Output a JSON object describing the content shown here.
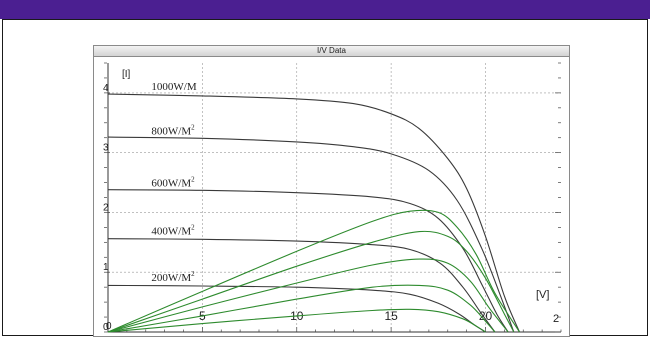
{
  "window": {
    "title": "I/V Data"
  },
  "chart_data": {
    "type": "line",
    "title": "I/V Data",
    "xlabel": "[V]",
    "ylabel": "[I]",
    "xlim": [
      0,
      24
    ],
    "ylim": [
      0,
      4.5
    ],
    "x_ticks": [
      0,
      5,
      10,
      15,
      20
    ],
    "x_tick_labels": [
      "0",
      "5",
      "10",
      "15",
      "20"
    ],
    "y_ticks": [
      0,
      1,
      2,
      3,
      4
    ],
    "y_tick_labels": [
      "0",
      "1",
      "2",
      "3",
      "4"
    ],
    "grid": true,
    "colors": {
      "iv": "#3a3a3a",
      "power": "#2e8b2e",
      "grid": "#9a9a9a"
    },
    "series": [
      {
        "name": "1000W/M",
        "kind": "iv",
        "x": [
          0,
          5,
          10,
          13,
          15,
          16.5,
          18,
          19,
          20,
          21,
          21.8
        ],
        "y": [
          3.98,
          3.95,
          3.9,
          3.82,
          3.65,
          3.4,
          2.9,
          2.4,
          1.6,
          0.6,
          0
        ]
      },
      {
        "name": "800W/M²",
        "kind": "iv",
        "x": [
          0,
          5,
          10,
          13,
          15,
          17,
          18.5,
          19.8,
          20.8,
          21.5
        ],
        "y": [
          3.26,
          3.24,
          3.18,
          3.1,
          2.98,
          2.7,
          2.2,
          1.4,
          0.6,
          0
        ]
      },
      {
        "name": "600W/M²",
        "kind": "iv",
        "x": [
          0,
          5,
          10,
          14,
          16,
          17.5,
          18.8,
          19.8,
          20.6,
          21.2
        ],
        "y": [
          2.38,
          2.37,
          2.33,
          2.26,
          2.15,
          1.9,
          1.4,
          0.8,
          0.3,
          0
        ]
      },
      {
        "name": "400W/M²",
        "kind": "iv",
        "x": [
          0,
          5,
          10,
          14,
          16,
          17.6,
          18.8,
          19.8,
          20.5
        ],
        "y": [
          1.56,
          1.55,
          1.52,
          1.46,
          1.38,
          1.15,
          0.75,
          0.3,
          0
        ]
      },
      {
        "name": "200W/M²",
        "kind": "iv",
        "x": [
          0,
          5,
          10,
          14,
          16,
          17.5,
          18.6,
          19.4,
          20
        ],
        "y": [
          0.78,
          0.77,
          0.75,
          0.7,
          0.63,
          0.48,
          0.3,
          0.12,
          0
        ]
      },
      {
        "name": "",
        "kind": "power",
        "x": [
          0,
          5,
          10,
          14,
          16,
          17.5,
          18.5,
          19.5,
          20.5,
          21.8
        ],
        "y": [
          0,
          0.68,
          1.35,
          1.85,
          2.02,
          2.0,
          1.75,
          1.3,
          0.65,
          0
        ]
      },
      {
        "name": "",
        "kind": "power",
        "x": [
          0,
          5,
          10,
          14,
          16.5,
          18,
          19,
          20,
          21,
          21.5
        ],
        "y": [
          0,
          0.55,
          1.1,
          1.5,
          1.68,
          1.6,
          1.35,
          0.9,
          0.3,
          0
        ]
      },
      {
        "name": "",
        "kind": "power",
        "x": [
          0,
          5,
          10,
          14,
          16.5,
          18,
          19.2,
          20.2,
          21.2
        ],
        "y": [
          0,
          0.42,
          0.82,
          1.12,
          1.22,
          1.15,
          0.85,
          0.4,
          0
        ]
      },
      {
        "name": "",
        "kind": "power",
        "x": [
          0,
          5,
          10,
          14,
          16.5,
          18,
          19.2,
          20,
          20.5
        ],
        "y": [
          0,
          0.27,
          0.55,
          0.75,
          0.78,
          0.7,
          0.45,
          0.18,
          0
        ]
      },
      {
        "name": "",
        "kind": "power",
        "x": [
          0,
          5,
          10,
          14,
          16,
          17.5,
          18.8,
          19.6,
          20
        ],
        "y": [
          0,
          0.14,
          0.27,
          0.36,
          0.38,
          0.34,
          0.22,
          0.08,
          0
        ]
      }
    ],
    "curve_labels": [
      {
        "text": "1000W/M",
        "sup": "",
        "x": 2.3,
        "y": 4.05
      },
      {
        "text": "800W/M",
        "sup": "2",
        "x": 2.3,
        "y": 3.3
      },
      {
        "text": "600W/M",
        "sup": "2",
        "x": 2.3,
        "y": 2.43
      },
      {
        "text": "400W/M",
        "sup": "2",
        "x": 2.3,
        "y": 1.63
      },
      {
        "text": "200W/M",
        "sup": "2",
        "x": 2.3,
        "y": 0.85
      }
    ],
    "edge_label": "2"
  }
}
